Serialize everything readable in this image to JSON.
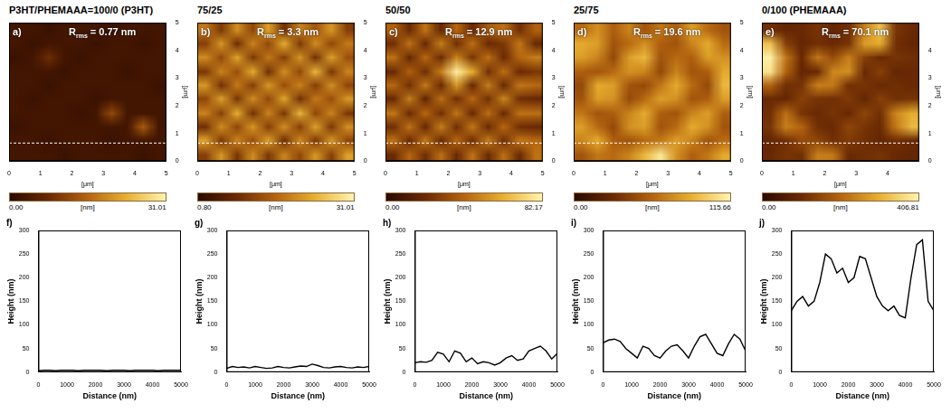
{
  "chart_data": [
    {
      "type": "heatmap",
      "title": "P3HT/PHEMAAA=100/0 (P3HT)",
      "panel_label": "a)",
      "annotation": {
        "label": "R",
        "sub": "rms",
        "text": "= 0.77 nm"
      },
      "xlim": [
        0,
        5
      ],
      "ylim": [
        0,
        5
      ],
      "xticks": [
        0,
        1,
        2,
        3,
        4,
        5
      ],
      "yticks": [
        0,
        1,
        2,
        3,
        4,
        5
      ],
      "x_label": "[μm]",
      "y_label": "[μm]",
      "grid": false,
      "profile_y": 0.65,
      "colorbar": {
        "range": [
          0,
          31.01
        ],
        "ticks": [
          {
            "value": 0,
            "label": "0.00"
          },
          {
            "value": 31.01,
            "label": "31.01"
          }
        ],
        "unit": "[nm]"
      },
      "z": [
        [
          3,
          3,
          2,
          3,
          3,
          3,
          2,
          3,
          3,
          3
        ],
        [
          3,
          2,
          3,
          3,
          3,
          2,
          3,
          3,
          2,
          3
        ],
        [
          2,
          3,
          8,
          3,
          2,
          3,
          3,
          3,
          3,
          3
        ],
        [
          3,
          3,
          3,
          2,
          3,
          3,
          3,
          2,
          3,
          3
        ],
        [
          3,
          3,
          2,
          3,
          3,
          3,
          3,
          3,
          3,
          2
        ],
        [
          3,
          2,
          3,
          3,
          3,
          2,
          3,
          3,
          3,
          3
        ],
        [
          3,
          3,
          3,
          3,
          2,
          3,
          12,
          3,
          3,
          3
        ],
        [
          2,
          3,
          3,
          3,
          3,
          3,
          3,
          3,
          14,
          3
        ],
        [
          3,
          3,
          2,
          3,
          3,
          3,
          2,
          3,
          3,
          3
        ],
        [
          3,
          3,
          3,
          2,
          3,
          3,
          3,
          3,
          2,
          3
        ]
      ]
    },
    {
      "type": "heatmap",
      "title": "75/25",
      "panel_label": "b)",
      "annotation": {
        "label": "R",
        "sub": "rms",
        "text": "= 3.3 nm"
      },
      "xlim": [
        0,
        5
      ],
      "ylim": [
        0,
        5
      ],
      "xticks": [
        0,
        1,
        2,
        3,
        4,
        5
      ],
      "yticks": [
        0,
        1,
        2,
        3,
        4,
        5
      ],
      "x_label": "[μm]",
      "y_label": "[μm]",
      "grid": false,
      "profile_y": 0.65,
      "colorbar": {
        "range": [
          0.8,
          31.01
        ],
        "ticks": [
          {
            "value": 0.8,
            "label": "0.80"
          },
          {
            "value": 31.01,
            "label": "31.01"
          }
        ],
        "unit": "[nm]"
      },
      "z": [
        [
          18,
          10,
          20,
          12,
          22,
          9,
          19,
          14,
          21,
          11
        ],
        [
          11,
          21,
          9,
          19,
          12,
          23,
          10,
          20,
          12,
          18
        ],
        [
          20,
          12,
          22,
          10,
          18,
          11,
          21,
          9,
          22,
          13
        ],
        [
          10,
          19,
          13,
          23,
          9,
          20,
          12,
          24,
          10,
          19
        ],
        [
          21,
          9,
          18,
          11,
          21,
          13,
          19,
          11,
          20,
          12
        ],
        [
          12,
          22,
          10,
          20,
          12,
          22,
          9,
          18,
          13,
          21
        ],
        [
          19,
          11,
          23,
          9,
          19,
          10,
          24,
          12,
          19,
          10
        ],
        [
          9,
          20,
          12,
          21,
          11,
          20,
          11,
          22,
          10,
          20
        ],
        [
          22,
          10,
          19,
          13,
          22,
          9,
          20,
          10,
          21,
          12
        ],
        [
          11,
          21,
          10,
          20,
          10,
          19,
          12,
          21,
          11,
          22
        ]
      ]
    },
    {
      "type": "heatmap",
      "title": "50/50",
      "panel_label": "c)",
      "annotation": {
        "label": "R",
        "sub": "rms",
        "text": "= 12.9 nm"
      },
      "xlim": [
        0,
        5
      ],
      "ylim": [
        0,
        5
      ],
      "xticks": [
        0,
        1,
        2,
        3,
        4,
        5
      ],
      "yticks": [
        0,
        1,
        2,
        3,
        4,
        5
      ],
      "x_label": "[μm]",
      "y_label": "[μm]",
      "grid": false,
      "profile_y": 0.65,
      "colorbar": {
        "range": [
          0,
          82.17
        ],
        "ticks": [
          {
            "value": 0,
            "label": "0.00"
          },
          {
            "value": 82.17,
            "label": "82.17"
          }
        ],
        "unit": "[nm]"
      },
      "z": [
        [
          40,
          20,
          45,
          18,
          42,
          20,
          38,
          45,
          22,
          40
        ],
        [
          22,
          45,
          20,
          48,
          22,
          44,
          20,
          25,
          46,
          20
        ],
        [
          45,
          18,
          42,
          20,
          50,
          24,
          45,
          20,
          42,
          48
        ],
        [
          20,
          40,
          22,
          48,
          80,
          60,
          22,
          44,
          20,
          25
        ],
        [
          42,
          22,
          46,
          20,
          55,
          20,
          48,
          20,
          46,
          42
        ],
        [
          20,
          48,
          18,
          44,
          22,
          42,
          22,
          50,
          22,
          20
        ],
        [
          46,
          20,
          42,
          22,
          46,
          20,
          44,
          20,
          45,
          44
        ],
        [
          22,
          45,
          20,
          48,
          22,
          46,
          20,
          42,
          22,
          20
        ],
        [
          44,
          20,
          46,
          20,
          42,
          22,
          48,
          22,
          46,
          42
        ],
        [
          20,
          42,
          22,
          44,
          20,
          45,
          20,
          44,
          20,
          45
        ]
      ]
    },
    {
      "type": "heatmap",
      "title": "25/75",
      "panel_label": "d)",
      "annotation": {
        "label": "R",
        "sub": "rms",
        "text": "= 19.6 nm"
      },
      "xlim": [
        0,
        5
      ],
      "ylim": [
        0,
        5
      ],
      "xticks": [
        0,
        1,
        2,
        3,
        4,
        5
      ],
      "yticks": [
        0,
        1,
        2,
        3,
        4,
        5
      ],
      "x_label": "[μm]",
      "y_label": "[μm]",
      "grid": false,
      "profile_y": 0.65,
      "colorbar": {
        "range": [
          0,
          115.66
        ],
        "ticks": [
          {
            "value": 0,
            "label": "0.00"
          },
          {
            "value": 115.66,
            "label": "115.66"
          }
        ],
        "unit": "[nm]"
      },
      "z": [
        [
          60,
          75,
          55,
          70,
          50,
          65,
          55,
          80,
          60,
          50
        ],
        [
          85,
          80,
          50,
          60,
          75,
          55,
          50,
          70,
          85,
          60
        ],
        [
          80,
          70,
          45,
          80,
          90,
          50,
          60,
          55,
          80,
          75
        ],
        [
          55,
          50,
          60,
          75,
          70,
          45,
          70,
          50,
          55,
          85
        ],
        [
          45,
          85,
          80,
          50,
          45,
          65,
          85,
          60,
          45,
          90
        ],
        [
          50,
          80,
          75,
          45,
          60,
          80,
          75,
          50,
          55,
          80
        ],
        [
          65,
          50,
          55,
          70,
          85,
          55,
          50,
          70,
          80,
          55
        ],
        [
          80,
          60,
          45,
          75,
          80,
          50,
          60,
          85,
          75,
          50
        ],
        [
          70,
          85,
          55,
          50,
          60,
          65,
          80,
          70,
          50,
          60
        ],
        [
          50,
          65,
          60,
          70,
          90,
          110,
          75,
          55,
          65,
          85
        ]
      ]
    },
    {
      "type": "heatmap",
      "title": "0/100 (PHEMAAA)",
      "panel_label": "e)",
      "annotation": {
        "label": "R",
        "sub": "rms",
        "text": "= 70.1 nm"
      },
      "xlim": [
        0,
        5
      ],
      "ylim": [
        0,
        5
      ],
      "xticks": [
        0,
        1,
        2,
        3,
        4
      ],
      "yticks": [
        0,
        1,
        2,
        3,
        4
      ],
      "x_label": "[μm]",
      "y_label": "[μm]",
      "grid": false,
      "profile_y": 0.65,
      "colorbar": {
        "range": [
          0,
          406.81
        ],
        "ticks": [
          {
            "value": 0,
            "label": "0.00"
          },
          {
            "value": 406.81,
            "label": "406.81"
          }
        ],
        "unit": "[nm]"
      },
      "z": [
        [
          110,
          90,
          100,
          120,
          90,
          110,
          240,
          330,
          120,
          100
        ],
        [
          330,
          140,
          90,
          110,
          100,
          120,
          280,
          300,
          110,
          90
        ],
        [
          400,
          230,
          100,
          230,
          160,
          240,
          140,
          100,
          120,
          110
        ],
        [
          380,
          200,
          90,
          100,
          250,
          260,
          100,
          140,
          90,
          100
        ],
        [
          200,
          110,
          120,
          240,
          230,
          110,
          120,
          100,
          110,
          100
        ],
        [
          100,
          90,
          140,
          120,
          110,
          130,
          90,
          140,
          110,
          120
        ],
        [
          110,
          220,
          120,
          100,
          120,
          100,
          150,
          110,
          250,
          300
        ],
        [
          120,
          240,
          200,
          110,
          100,
          150,
          120,
          100,
          230,
          320
        ],
        [
          90,
          110,
          160,
          150,
          110,
          130,
          110,
          90,
          110,
          100
        ],
        [
          100,
          120,
          110,
          240,
          230,
          100,
          110,
          120,
          100,
          90
        ]
      ]
    },
    {
      "type": "line",
      "panel_label": "f)",
      "x_label": "Distance (nm)",
      "y_label": "Height (nm)",
      "color": "#000000",
      "grid": false,
      "xlim": [
        0,
        5000
      ],
      "ylim": [
        0,
        300
      ],
      "xticks": [
        0,
        1000,
        2000,
        3000,
        4000,
        5000
      ],
      "yticks": [
        0,
        50,
        100,
        150,
        200,
        250,
        300
      ],
      "x": [
        0,
        200,
        400,
        600,
        800,
        1000,
        1200,
        1400,
        1600,
        1800,
        2000,
        2200,
        2400,
        2600,
        2800,
        3000,
        3200,
        3400,
        3600,
        3800,
        4000,
        4200,
        4400,
        4600,
        4800,
        5000
      ],
      "values": [
        3,
        4,
        4,
        3,
        4,
        4,
        4,
        3,
        4,
        4,
        4,
        4,
        3,
        4,
        4,
        4,
        3,
        4,
        4,
        4,
        4,
        3,
        4,
        4,
        4,
        4
      ]
    },
    {
      "type": "line",
      "panel_label": "g)",
      "x_label": "Distance (nm)",
      "y_label": "Height (nm)",
      "color": "#000000",
      "grid": false,
      "xlim": [
        0,
        5000
      ],
      "ylim": [
        0,
        300
      ],
      "xticks": [
        0,
        1000,
        2000,
        3000,
        4000,
        5000
      ],
      "yticks": [
        0,
        50,
        100,
        150,
        200,
        250,
        300
      ],
      "x": [
        0,
        200,
        400,
        600,
        800,
        1000,
        1200,
        1400,
        1600,
        1800,
        2000,
        2200,
        2400,
        2600,
        2800,
        3000,
        3200,
        3400,
        3600,
        3800,
        4000,
        4200,
        4400,
        4600,
        4800,
        5000
      ],
      "values": [
        8,
        12,
        10,
        11,
        9,
        12,
        10,
        8,
        9,
        12,
        10,
        9,
        11,
        13,
        12,
        17,
        14,
        10,
        9,
        11,
        12,
        10,
        9,
        11,
        10,
        12
      ]
    },
    {
      "type": "line",
      "panel_label": "h)",
      "x_label": "Distance (nm)",
      "y_label": "Height (nm)",
      "color": "#000000",
      "grid": false,
      "xlim": [
        0,
        5000
      ],
      "ylim": [
        0,
        300
      ],
      "xticks": [
        0,
        1000,
        2000,
        3000,
        4000,
        5000
      ],
      "yticks": [
        0,
        50,
        100,
        150,
        200,
        250,
        300
      ],
      "x": [
        0,
        200,
        400,
        600,
        800,
        1000,
        1200,
        1400,
        1600,
        1800,
        2000,
        2200,
        2400,
        2600,
        2800,
        3000,
        3200,
        3400,
        3600,
        3800,
        4000,
        4200,
        4400,
        4600,
        4800,
        5000
      ],
      "values": [
        20,
        22,
        21,
        25,
        42,
        38,
        22,
        45,
        40,
        22,
        30,
        18,
        22,
        20,
        15,
        20,
        30,
        35,
        25,
        28,
        45,
        50,
        55,
        45,
        28,
        40
      ]
    },
    {
      "type": "line",
      "panel_label": "i)",
      "x_label": "Distance (nm)",
      "y_label": "Height (nm)",
      "color": "#000000",
      "grid": false,
      "xlim": [
        0,
        5000
      ],
      "ylim": [
        0,
        300
      ],
      "xticks": [
        0,
        1000,
        2000,
        3000,
        4000,
        5000
      ],
      "yticks": [
        0,
        50,
        100,
        150,
        200,
        250,
        300
      ],
      "x": [
        0,
        200,
        400,
        600,
        800,
        1000,
        1200,
        1400,
        1600,
        1800,
        2000,
        2200,
        2400,
        2600,
        2800,
        3000,
        3200,
        3400,
        3600,
        3800,
        4000,
        4200,
        4400,
        4600,
        4800,
        5000
      ],
      "values": [
        62,
        68,
        70,
        65,
        50,
        40,
        30,
        55,
        50,
        35,
        30,
        45,
        55,
        58,
        45,
        30,
        55,
        75,
        80,
        60,
        40,
        35,
        60,
        80,
        70,
        45
      ]
    },
    {
      "type": "line",
      "panel_label": "j)",
      "x_label": "Distance (nm)",
      "y_label": "Height (nm)",
      "color": "#000000",
      "grid": false,
      "xlim": [
        0,
        5000
      ],
      "ylim": [
        0,
        300
      ],
      "xticks": [
        0,
        1000,
        2000,
        3000,
        4000,
        5000
      ],
      "yticks": [
        0,
        50,
        100,
        150,
        200,
        250,
        300
      ],
      "x": [
        0,
        200,
        400,
        600,
        800,
        1000,
        1200,
        1400,
        1600,
        1800,
        2000,
        2200,
        2400,
        2600,
        2800,
        3000,
        3200,
        3400,
        3600,
        3800,
        4000,
        4200,
        4400,
        4600,
        4800,
        5000
      ],
      "values": [
        130,
        150,
        160,
        140,
        150,
        190,
        250,
        240,
        210,
        220,
        190,
        200,
        245,
        240,
        200,
        160,
        140,
        130,
        140,
        120,
        115,
        200,
        270,
        280,
        150,
        130
      ]
    }
  ]
}
